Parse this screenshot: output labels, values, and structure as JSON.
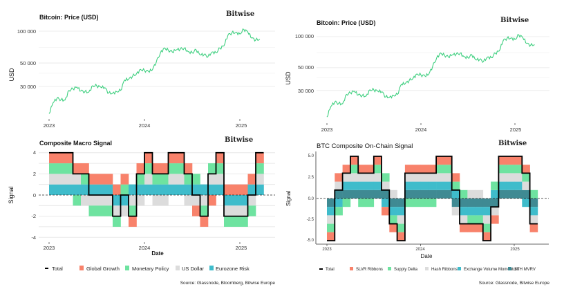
{
  "colors": {
    "price_line": "#3ecf7f",
    "global_growth": "#f8826b",
    "monetary_policy": "#6ee3a0",
    "us_dollar": "#dcdcdc",
    "eurozone_risk": "#3fbccb",
    "slvr_ribbons": "#f8826b",
    "supply_delta": "#6ee3a0",
    "hash_ribbons": "#dcdcdc",
    "exchange_volume_momentum": "#3fbccb",
    "sth_mvrv": "#3f8a93",
    "total": "#000000"
  },
  "logo_text": "Bitwise",
  "chart_data": [
    {
      "id": "price_left",
      "type": "line",
      "title": "Bitcoin: Price (USD)",
      "ylabel": "USD",
      "xlabel": "",
      "yscale": "log",
      "ytick_labels": [
        "100 000",
        "50 000",
        "30 000"
      ],
      "xtick_labels": [
        "2023",
        "2024",
        "2025"
      ],
      "grid": true,
      "x": [
        "2023-01",
        "2023-01.5",
        "2023-02",
        "2023-02.5",
        "2023-03",
        "2023-03.5",
        "2023-04",
        "2023-04.5",
        "2023-05",
        "2023-05.5",
        "2023-06",
        "2023-06.5",
        "2023-07",
        "2023-07.5",
        "2023-08",
        "2023-08.5",
        "2023-09",
        "2023-09.5",
        "2023-10",
        "2023-10.5",
        "2023-11",
        "2023-11.5",
        "2023-12",
        "2023-12.5",
        "2024-01",
        "2024-01.5",
        "2024-02",
        "2024-02.5",
        "2024-03",
        "2024-03.5",
        "2024-04",
        "2024-04.5",
        "2024-05",
        "2024-05.5",
        "2024-06",
        "2024-06.5",
        "2024-07",
        "2024-07.5",
        "2024-08",
        "2024-08.5",
        "2024-09",
        "2024-09.5",
        "2024-10",
        "2024-10.5",
        "2024-11",
        "2024-11.5",
        "2024-12",
        "2024-12.5",
        "2025-01",
        "2025-01.5",
        "2025-02",
        "2025-02.5",
        "2025-03",
        "2025-03.5"
      ],
      "values": [
        16600,
        21000,
        23200,
        22500,
        22300,
        27500,
        28500,
        29500,
        27200,
        26800,
        26500,
        30500,
        30400,
        29500,
        29200,
        26000,
        25900,
        26800,
        27500,
        34500,
        35000,
        37500,
        39500,
        43500,
        42500,
        41500,
        43000,
        51500,
        62000,
        69500,
        66000,
        63500,
        66500,
        67500,
        69000,
        64000,
        62500,
        66500,
        59500,
        60000,
        57500,
        63500,
        62500,
        69000,
        72500,
        91500,
        96500,
        97000,
        94000,
        104000,
        98000,
        86000,
        82500,
        84000
      ]
    },
    {
      "id": "price_right",
      "type": "line",
      "title": "Bitcoin: Price (USD)",
      "ylabel": "USD",
      "xlabel": "",
      "yscale": "log",
      "ytick_labels": [
        "100 000",
        "50 000",
        "30 000"
      ],
      "xtick_labels": [
        "2023",
        "2024",
        "2025"
      ],
      "grid": true,
      "same_series_as": "price_left"
    },
    {
      "id": "macro_signal",
      "type": "stacked-bar-with-line",
      "title": "Composite Macro Signal",
      "xlabel": "Date",
      "ylabel": "Signal",
      "ylim": [
        -4,
        4
      ],
      "ytick_labels": [
        "4",
        "2",
        "0",
        "-2",
        "-4"
      ],
      "xtick_labels": [
        "2023",
        "2024",
        "2025"
      ],
      "grid": true,
      "legend_position": "bottom",
      "legend": {
        "total": "Total",
        "items": [
          "Global Growth",
          "Monetary Policy",
          "US Dollar",
          "Eurozone Risk"
        ]
      },
      "source": "Source: Glassnode, Bloomberg, Bitwise Europe",
      "x": [
        "2023-01",
        "2023-02",
        "2023-03",
        "2023-04",
        "2023-05",
        "2023-06",
        "2023-07",
        "2023-08",
        "2023-09",
        "2023-10",
        "2023-11",
        "2023-12",
        "2024-01",
        "2024-02",
        "2024-03",
        "2024-04",
        "2024-05",
        "2024-06",
        "2024-07",
        "2024-08",
        "2024-09",
        "2024-10",
        "2024-11",
        "2024-12",
        "2025-01",
        "2025-02",
        "2025-03"
      ],
      "series": [
        {
          "name": "Eurozone Risk",
          "values": [
            1,
            1,
            1,
            1,
            1,
            1,
            1,
            1,
            -1,
            -1,
            1,
            1,
            1,
            1,
            1,
            1,
            1,
            1,
            1,
            1,
            1,
            1,
            -1,
            -1,
            -1,
            1,
            1
          ]
        },
        {
          "name": "US Dollar",
          "values": [
            1,
            1,
            1,
            1,
            -1,
            -1,
            -1,
            -1,
            -1,
            -1,
            -1,
            -1,
            1,
            -1,
            -1,
            1,
            1,
            -1,
            -1,
            -1,
            1,
            1,
            -1,
            -1,
            -1,
            -1,
            1
          ]
        },
        {
          "name": "Monetary Policy",
          "values": [
            1,
            1,
            1,
            -1,
            1,
            -1,
            -1,
            -1,
            -1,
            1,
            -1,
            1,
            1,
            1,
            1,
            1,
            1,
            1,
            1,
            -1,
            1,
            1,
            -1,
            -1,
            -1,
            -1,
            1
          ]
        },
        {
          "name": "Global Growth",
          "values": [
            1,
            1,
            1,
            1,
            1,
            1,
            1,
            1,
            1,
            1,
            -1,
            1,
            1,
            1,
            1,
            1,
            1,
            1,
            -1,
            -1,
            -1,
            1,
            1,
            1,
            1,
            1,
            1
          ]
        }
      ]
    },
    {
      "id": "onchain_signal",
      "type": "stacked-bar-with-line",
      "title": "BTC Composite On-Chain Signal",
      "xlabel": "Date",
      "ylabel": "Signal",
      "ylim": [
        -5,
        5
      ],
      "ytick_labels": [
        "5.0",
        "2.5",
        "0.0",
        "-2.5",
        "-5.0"
      ],
      "xtick_labels": [
        "2023",
        "2024",
        "2025"
      ],
      "grid": false,
      "legend_position": "bottom",
      "legend": {
        "total": "Total",
        "items": [
          "SLVR Ribbons",
          "Supply Delta",
          "Hash Ribbons",
          "Exchange Volume Momentum",
          "STH MVRV"
        ]
      },
      "source": "Source: Glassnode, Bitwise Europe",
      "x": [
        "2023-01",
        "2023-02",
        "2023-03",
        "2023-04",
        "2023-05",
        "2023-06",
        "2023-07",
        "2023-08",
        "2023-09",
        "2023-10",
        "2023-11",
        "2023-12",
        "2024-01",
        "2024-02",
        "2024-03",
        "2024-04",
        "2024-05",
        "2024-06",
        "2024-07",
        "2024-08",
        "2024-09",
        "2024-10",
        "2024-11",
        "2024-12",
        "2025-01",
        "2025-02",
        "2025-03"
      ],
      "series": [
        {
          "name": "STH MVRV",
          "values": [
            -1,
            1,
            1,
            1,
            1,
            1,
            1,
            1,
            -1,
            -1,
            1,
            1,
            1,
            1,
            1,
            1,
            -1,
            -1,
            -1,
            -1,
            -1,
            -1,
            1,
            1,
            1,
            1,
            -1
          ]
        },
        {
          "name": "Exchange Volume Momentum",
          "values": [
            -1,
            -1,
            1,
            1,
            1,
            1,
            1,
            -1,
            -1,
            -1,
            1,
            1,
            1,
            1,
            1,
            1,
            1,
            -1,
            -1,
            -1,
            -1,
            1,
            1,
            1,
            1,
            -1,
            -1
          ]
        },
        {
          "name": "Hash Ribbons",
          "values": [
            -1,
            1,
            1,
            1,
            1,
            1,
            1,
            1,
            1,
            -1,
            1,
            1,
            1,
            1,
            1,
            1,
            -1,
            -1,
            1,
            1,
            -1,
            -1,
            1,
            1,
            1,
            1,
            -1
          ]
        },
        {
          "name": "Supply Delta",
          "values": [
            -1,
            -1,
            -1,
            1,
            -1,
            -1,
            1,
            1,
            -1,
            -1,
            -1,
            -1,
            -1,
            -1,
            1,
            1,
            1,
            1,
            -1,
            -1,
            -1,
            1,
            1,
            1,
            1,
            1,
            1
          ]
        },
        {
          "name": "SLVR Ribbons",
          "values": [
            -1,
            1,
            1,
            1,
            1,
            1,
            1,
            -1,
            -1,
            -1,
            1,
            1,
            1,
            1,
            1,
            1,
            1,
            -1,
            -1,
            -1,
            -1,
            -1,
            1,
            1,
            1,
            1,
            -1
          ]
        }
      ]
    }
  ]
}
